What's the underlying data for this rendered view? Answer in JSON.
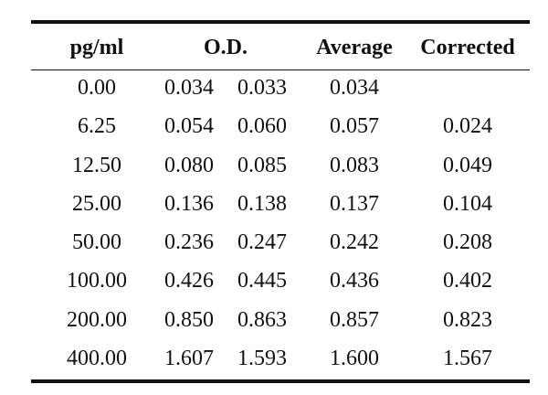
{
  "table": {
    "headers": {
      "concentration": "pg/ml",
      "od": "O.D.",
      "average": "Average",
      "corrected": "Corrected"
    },
    "rows": [
      {
        "concentration": "0.00",
        "od1": "0.034",
        "od2": "0.033",
        "average": "0.034",
        "corrected": ""
      },
      {
        "concentration": "6.25",
        "od1": "0.054",
        "od2": "0.060",
        "average": "0.057",
        "corrected": "0.024"
      },
      {
        "concentration": "12.50",
        "od1": "0.080",
        "od2": "0.085",
        "average": "0.083",
        "corrected": "0.049"
      },
      {
        "concentration": "25.00",
        "od1": "0.136",
        "od2": "0.138",
        "average": "0.137",
        "corrected": "0.104"
      },
      {
        "concentration": "50.00",
        "od1": "0.236",
        "od2": "0.247",
        "average": "0.242",
        "corrected": "0.208"
      },
      {
        "concentration": "100.00",
        "od1": "0.426",
        "od2": "0.445",
        "average": "0.436",
        "corrected": "0.402"
      },
      {
        "concentration": "200.00",
        "od1": "0.850",
        "od2": "0.863",
        "average": "0.857",
        "corrected": "0.823"
      },
      {
        "concentration": "400.00",
        "od1": "1.607",
        "od2": "1.593",
        "average": "1.600",
        "corrected": "1.567"
      }
    ]
  }
}
